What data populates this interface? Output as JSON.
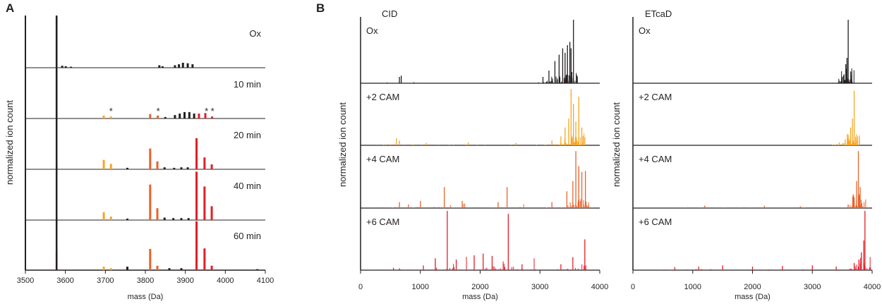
{
  "chart_data": [
    {
      "panel": "A",
      "type": "bar",
      "ylabel": "normalized ion count",
      "xlabel": "mass (Da)",
      "xlim": [
        3500,
        4100
      ],
      "xticks": [
        3500,
        3600,
        3700,
        3800,
        3900,
        4000,
        4100
      ],
      "rows": [
        {
          "label": "Ox",
          "bars": [
            {
              "x": 3578,
              "y": 1.0,
              "c": "#231f20"
            },
            {
              "x": 3592,
              "y": 0.04,
              "c": "#231f20"
            },
            {
              "x": 3601,
              "y": 0.03,
              "c": "#231f20"
            },
            {
              "x": 3614,
              "y": 0.02,
              "c": "#231f20"
            },
            {
              "x": 3835,
              "y": 0.05,
              "c": "#231f20"
            },
            {
              "x": 3843,
              "y": 0.03,
              "c": "#231f20"
            },
            {
              "x": 3874,
              "y": 0.05,
              "c": "#231f20"
            },
            {
              "x": 3884,
              "y": 0.07,
              "c": "#231f20"
            },
            {
              "x": 3894,
              "y": 0.1,
              "c": "#231f20"
            },
            {
              "x": 3906,
              "y": 0.09,
              "c": "#231f20"
            },
            {
              "x": 3918,
              "y": 0.07,
              "c": "#231f20"
            }
          ]
        },
        {
          "label": "10 min",
          "stars": [
            3714,
            3832,
            3953,
            3968
          ],
          "bars": [
            {
              "x": 3578,
              "y": 1.0,
              "c": "#231f20"
            },
            {
              "x": 3696,
              "y": 0.06,
              "c": "#f5a623"
            },
            {
              "x": 3714,
              "y": 0.04,
              "c": "#f5a623"
            },
            {
              "x": 3812,
              "y": 0.09,
              "c": "#e8632b"
            },
            {
              "x": 3831,
              "y": 0.06,
              "c": "#e8632b"
            },
            {
              "x": 3850,
              "y": 0.03,
              "c": "#231f20"
            },
            {
              "x": 3874,
              "y": 0.07,
              "c": "#231f20"
            },
            {
              "x": 3886,
              "y": 0.1,
              "c": "#231f20"
            },
            {
              "x": 3898,
              "y": 0.13,
              "c": "#231f20"
            },
            {
              "x": 3910,
              "y": 0.13,
              "c": "#231f20"
            },
            {
              "x": 3922,
              "y": 0.1,
              "c": "#231f20"
            },
            {
              "x": 3934,
              "y": 0.1,
              "c": "#e31e24"
            },
            {
              "x": 3950,
              "y": 0.11,
              "c": "#e31e24"
            },
            {
              "x": 3967,
              "y": 0.04,
              "c": "#e31e24"
            }
          ]
        },
        {
          "label": "20 min",
          "bars": [
            {
              "x": 3578,
              "y": 0.07,
              "c": "#231f20"
            },
            {
              "x": 3696,
              "y": 0.19,
              "c": "#f5a623"
            },
            {
              "x": 3714,
              "y": 0.11,
              "c": "#f5a623"
            },
            {
              "x": 3755,
              "y": 0.03,
              "c": "#231f20"
            },
            {
              "x": 3812,
              "y": 0.42,
              "c": "#e8632b"
            },
            {
              "x": 3830,
              "y": 0.16,
              "c": "#e8632b"
            },
            {
              "x": 3848,
              "y": 0.04,
              "c": "#231f20"
            },
            {
              "x": 3872,
              "y": 0.03,
              "c": "#231f20"
            },
            {
              "x": 3890,
              "y": 0.04,
              "c": "#231f20"
            },
            {
              "x": 3906,
              "y": 0.04,
              "c": "#231f20"
            },
            {
              "x": 3928,
              "y": 0.63,
              "c": "#e31e24"
            },
            {
              "x": 3948,
              "y": 0.24,
              "c": "#e31e24"
            },
            {
              "x": 3966,
              "y": 0.1,
              "c": "#e31e24"
            }
          ]
        },
        {
          "label": "40 min",
          "bars": [
            {
              "x": 3578,
              "y": 0.03,
              "c": "#231f20"
            },
            {
              "x": 3696,
              "y": 0.16,
              "c": "#f5a623"
            },
            {
              "x": 3714,
              "y": 0.07,
              "c": "#f5a623"
            },
            {
              "x": 3755,
              "y": 0.03,
              "c": "#231f20"
            },
            {
              "x": 3812,
              "y": 0.72,
              "c": "#e8632b"
            },
            {
              "x": 3830,
              "y": 0.24,
              "c": "#e8632b"
            },
            {
              "x": 3848,
              "y": 0.05,
              "c": "#231f20"
            },
            {
              "x": 3870,
              "y": 0.04,
              "c": "#231f20"
            },
            {
              "x": 3890,
              "y": 0.04,
              "c": "#231f20"
            },
            {
              "x": 3908,
              "y": 0.04,
              "c": "#231f20"
            },
            {
              "x": 3928,
              "y": 0.98,
              "c": "#e31e24"
            },
            {
              "x": 3948,
              "y": 0.68,
              "c": "#e31e24"
            },
            {
              "x": 3966,
              "y": 0.28,
              "c": "#e31e24"
            }
          ]
        },
        {
          "label": "60 min",
          "bars": [
            {
              "x": 3578,
              "y": 0.38,
              "c": "#231f20"
            },
            {
              "x": 3696,
              "y": 0.07,
              "c": "#f5a623"
            },
            {
              "x": 3714,
              "y": 0.04,
              "c": "#f5a623"
            },
            {
              "x": 3755,
              "y": 0.07,
              "c": "#231f20"
            },
            {
              "x": 3812,
              "y": 0.43,
              "c": "#e8632b"
            },
            {
              "x": 3830,
              "y": 0.09,
              "c": "#e8632b"
            },
            {
              "x": 3860,
              "y": 0.04,
              "c": "#231f20"
            },
            {
              "x": 3890,
              "y": 0.04,
              "c": "#231f20"
            },
            {
              "x": 3928,
              "y": 0.99,
              "c": "#e31e24"
            },
            {
              "x": 3948,
              "y": 0.44,
              "c": "#e31e24"
            },
            {
              "x": 3966,
              "y": 0.09,
              "c": "#e31e24"
            },
            {
              "x": 4080,
              "y": 0.02,
              "c": "#231f20"
            }
          ]
        }
      ]
    },
    {
      "panel": "B",
      "type": "bar",
      "title": "CID",
      "ylabel": "normalized ion count",
      "xlabel": "mass (Da)",
      "xlim": [
        0,
        4000
      ],
      "xticks": [
        0,
        1000,
        2000,
        3000,
        4000
      ],
      "rows": [
        {
          "label": "Ox",
          "color": "#231f20",
          "peaks": [
            [
              650,
              0.1
            ],
            [
              680,
              0.12
            ],
            [
              3050,
              0.1
            ],
            [
              3150,
              0.2
            ],
            [
              3250,
              0.35
            ],
            [
              3320,
              0.45
            ],
            [
              3380,
              0.55
            ],
            [
              3420,
              0.48
            ],
            [
              3460,
              0.6
            ],
            [
              3500,
              0.65
            ],
            [
              3520,
              0.55
            ],
            [
              3560,
              1.0
            ]
          ]
        },
        {
          "label": "+2 CAM",
          "color": "#f5a623",
          "peaks": [
            [
              600,
              0.12
            ],
            [
              650,
              0.08
            ],
            [
              1100,
              0.04
            ],
            [
              1800,
              0.05
            ],
            [
              2600,
              0.04
            ],
            [
              3200,
              0.08
            ],
            [
              3350,
              0.15
            ],
            [
              3420,
              0.3
            ],
            [
              3480,
              0.45
            ],
            [
              3520,
              0.95
            ],
            [
              3560,
              0.7
            ],
            [
              3600,
              0.4
            ],
            [
              3650,
              0.82
            ],
            [
              3700,
              0.3
            ]
          ]
        },
        {
          "label": "+4 CAM",
          "color": "#e8632b",
          "peaks": [
            [
              650,
              0.1
            ],
            [
              800,
              0.06
            ],
            [
              1000,
              0.12
            ],
            [
              1400,
              0.35
            ],
            [
              1700,
              0.12
            ],
            [
              2300,
              0.1
            ],
            [
              2450,
              0.35
            ],
            [
              3200,
              0.1
            ],
            [
              3450,
              0.28
            ],
            [
              3550,
              0.45
            ],
            [
              3600,
              0.95
            ],
            [
              3650,
              0.7
            ],
            [
              3700,
              0.6
            ],
            [
              3760,
              0.62
            ]
          ]
        },
        {
          "label": "+6 CAM",
          "color": "#e31e24",
          "peaks": [
            [
              550,
              0.04
            ],
            [
              650,
              0.03
            ],
            [
              1050,
              0.08
            ],
            [
              1250,
              0.2
            ],
            [
              1450,
              1.0
            ],
            [
              1600,
              0.18
            ],
            [
              1900,
              0.25
            ],
            [
              2050,
              0.28
            ],
            [
              2200,
              0.24
            ],
            [
              2470,
              0.95
            ],
            [
              2700,
              0.1
            ],
            [
              3350,
              0.1
            ],
            [
              3550,
              0.22
            ],
            [
              3750,
              0.52
            ]
          ]
        }
      ]
    },
    {
      "panel": "B2",
      "type": "bar",
      "title": "ETcaD",
      "xlabel": "mass (Da)",
      "xlim": [
        0,
        4000
      ],
      "xticks": [
        0,
        1000,
        2000,
        3000,
        4000
      ],
      "rows": [
        {
          "label": "Ox",
          "color": "#231f20",
          "peaks": [
            [
              3450,
              0.04
            ],
            [
              3500,
              0.1
            ],
            [
              3530,
              0.14
            ],
            [
              3560,
              0.3
            ],
            [
              3580,
              0.4
            ],
            [
              3600,
              1.0
            ]
          ]
        },
        {
          "label": "+2 CAM",
          "color": "#f5a623",
          "peaks": [
            [
              3450,
              0.05
            ],
            [
              3550,
              0.1
            ],
            [
              3600,
              0.18
            ],
            [
              3640,
              0.3
            ],
            [
              3670,
              0.45
            ],
            [
              3700,
              0.92
            ]
          ]
        },
        {
          "label": "+4 CAM",
          "color": "#e8632b",
          "peaks": [
            [
              1200,
              0.04
            ],
            [
              2200,
              0.04
            ],
            [
              2800,
              0.03
            ],
            [
              3600,
              0.06
            ],
            [
              3700,
              0.18
            ],
            [
              3740,
              0.45
            ],
            [
              3770,
              0.95
            ],
            [
              3800,
              0.35
            ]
          ]
        },
        {
          "label": "+6 CAM",
          "color": "#e31e24",
          "peaks": [
            [
              700,
              0.05
            ],
            [
              1100,
              0.06
            ],
            [
              1500,
              0.08
            ],
            [
              2000,
              0.06
            ],
            [
              2500,
              0.07
            ],
            [
              3000,
              0.08
            ],
            [
              3400,
              0.06
            ],
            [
              3700,
              0.12
            ],
            [
              3780,
              0.18
            ],
            [
              3820,
              0.3
            ],
            [
              3860,
              0.5
            ],
            [
              3880,
              1.0
            ]
          ]
        }
      ]
    }
  ],
  "panel_letters": [
    "A",
    "B"
  ]
}
